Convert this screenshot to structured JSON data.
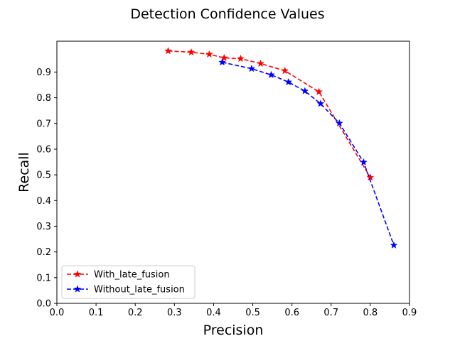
{
  "chart_data": {
    "type": "line",
    "title": "Detection Confidence Values",
    "xlabel": "Precision",
    "ylabel": "Recall",
    "xlim": [
      0.0,
      0.9
    ],
    "ylim": [
      0.0,
      1.02
    ],
    "xticks": [
      0.0,
      0.1,
      0.2,
      0.3,
      0.4,
      0.5,
      0.6,
      0.7,
      0.8,
      0.9
    ],
    "yticks": [
      0.0,
      0.1,
      0.2,
      0.3,
      0.4,
      0.5,
      0.6,
      0.7,
      0.8,
      0.9
    ],
    "xtick_labels": [
      "0.0",
      "0.1",
      "0.2",
      "0.3",
      "0.4",
      "0.5",
      "0.6",
      "0.7",
      "0.8",
      "0.9"
    ],
    "ytick_labels": [
      "0.0",
      "0.1",
      "0.2",
      "0.3",
      "0.4",
      "0.5",
      "0.6",
      "0.7",
      "0.8",
      "0.9"
    ],
    "grid": false,
    "legend_position": "lower-left",
    "series": [
      {
        "name": "With_late_fusion",
        "color": "#ff0000",
        "linestyle": "dashed",
        "marker": "star",
        "x": [
          0.284,
          0.343,
          0.389,
          0.427,
          0.469,
          0.52,
          0.582,
          0.669,
          0.8
        ],
        "y": [
          0.982,
          0.977,
          0.969,
          0.955,
          0.952,
          0.933,
          0.905,
          0.823,
          0.49
        ]
      },
      {
        "name": "Without_late_fusion",
        "color": "#0000ff",
        "linestyle": "dashed",
        "marker": "star",
        "x": [
          0.422,
          0.497,
          0.547,
          0.591,
          0.633,
          0.673,
          0.721,
          0.783,
          0.86
        ],
        "y": [
          0.938,
          0.913,
          0.889,
          0.861,
          0.826,
          0.777,
          0.701,
          0.549,
          0.226
        ]
      }
    ]
  }
}
